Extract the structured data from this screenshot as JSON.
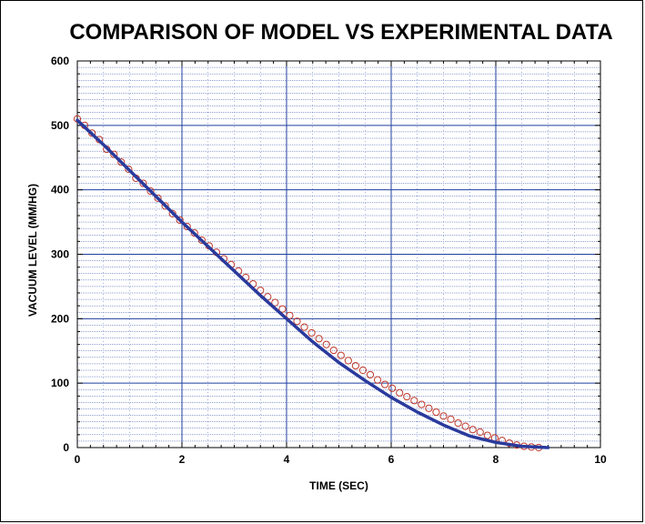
{
  "colors": {
    "grid_major": "#1f3f9f",
    "grid_minor": "#1f3f9f",
    "model_line": "#2a3a9c",
    "experimental_marker": "#c0392b",
    "frame": "#000000"
  },
  "chart_data": {
    "type": "scatter",
    "title": "COMPARISON OF MODEL VS EXPERIMENTAL DATA",
    "xlabel": "TIME (SEC)",
    "ylabel": "VACUUM LEVEL (MM/HG)",
    "xlim": [
      0,
      10
    ],
    "ylim": [
      0,
      600
    ],
    "grid": true,
    "x_ticks": [
      0,
      2,
      4,
      6,
      8,
      10
    ],
    "x_tick_labels": [
      "0",
      "2",
      "4",
      "6",
      "8",
      "10"
    ],
    "y_ticks": [
      0,
      100,
      200,
      300,
      400,
      500,
      600
    ],
    "y_tick_labels": [
      "0",
      "100",
      "200",
      "300",
      "400",
      "500",
      "600"
    ],
    "series": [
      {
        "style": "line",
        "x": [
          0,
          0.5,
          1.0,
          1.5,
          2.0,
          2.5,
          3.0,
          3.5,
          4.0,
          4.5,
          5.0,
          5.5,
          6.0,
          6.5,
          7.0,
          7.5,
          8.0,
          8.5,
          9.0
        ],
        "y": [
          508,
          470,
          430,
          390,
          350,
          312,
          274,
          236,
          200,
          164,
          132,
          104,
          78,
          55,
          35,
          18,
          8,
          2,
          0
        ]
      },
      {
        "style": "markers",
        "x": [
          0,
          0.14,
          0.28,
          0.42,
          0.56,
          0.7,
          0.84,
          0.98,
          1.12,
          1.26,
          1.4,
          1.54,
          1.68,
          1.82,
          1.96,
          2.1,
          2.24,
          2.38,
          2.52,
          2.66,
          2.8,
          2.94,
          3.08,
          3.22,
          3.36,
          3.5,
          3.64,
          3.78,
          3.92,
          4.06,
          4.2,
          4.34,
          4.48,
          4.62,
          4.76,
          4.9,
          5.04,
          5.18,
          5.32,
          5.46,
          5.6,
          5.74,
          5.88,
          6.02,
          6.16,
          6.3,
          6.44,
          6.58,
          6.72,
          6.86,
          7.0,
          7.14,
          7.28,
          7.42,
          7.56,
          7.7,
          7.84,
          7.98,
          8.12,
          8.26,
          8.4,
          8.54,
          8.68,
          8.82
        ],
        "y": [
          510,
          500,
          488,
          478,
          463,
          455,
          443,
          432,
          418,
          410,
          398,
          387,
          375,
          363,
          353,
          343,
          333,
          322,
          313,
          303,
          293,
          284,
          274,
          264,
          254,
          244,
          234,
          225,
          215,
          205,
          196,
          187,
          178,
          169,
          160,
          151,
          143,
          135,
          127,
          120,
          113,
          105,
          98,
          92,
          85,
          79,
          73,
          67,
          61,
          55,
          49,
          44,
          38,
          33,
          28,
          24,
          19,
          15,
          11,
          7,
          4,
          2,
          1,
          0
        ]
      }
    ]
  }
}
